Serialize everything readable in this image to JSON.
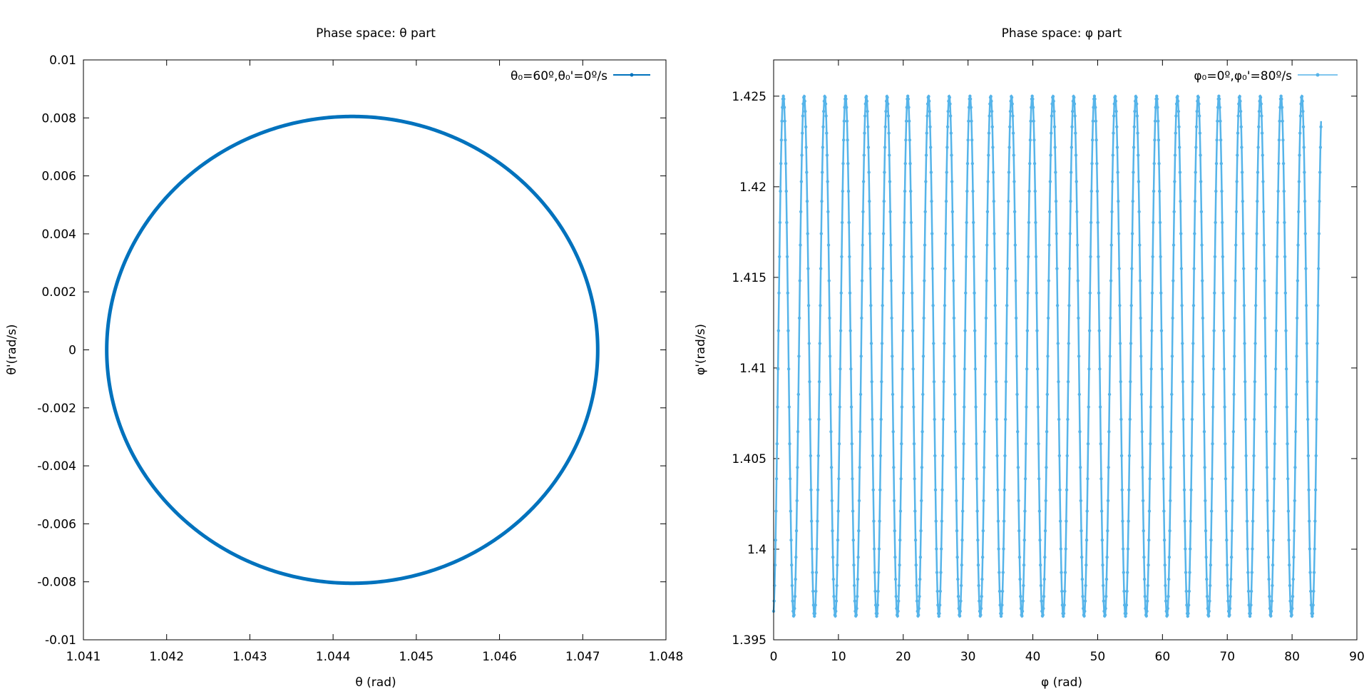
{
  "chart_data": [
    {
      "type": "scatter",
      "title": "Phase space: θ part",
      "xlabel": "θ (rad)",
      "ylabel": "θ'(rad/s)",
      "xlim": [
        1.041,
        1.048
      ],
      "ylim": [
        -0.01,
        0.01
      ],
      "xticks": [
        "1.041",
        "1.042",
        "1.043",
        "1.044",
        "1.045",
        "1.046",
        "1.047",
        "1.048"
      ],
      "yticks": [
        "-0.01",
        "-0.008",
        "-0.006",
        "-0.004",
        "-0.002",
        "0",
        "0.002",
        "0.004",
        "0.006",
        "0.008",
        "0.01"
      ],
      "grid": false,
      "legend_position": "top-right",
      "series": [
        {
          "name": "θ₀=60º,θ₀'=0º/s",
          "color": "#0072bd",
          "shape": "closed orbit (ellipse)",
          "x_range": [
            1.04128,
            1.04718
          ],
          "y_range": [
            -0.00805,
            0.00805
          ],
          "center": [
            1.04423,
            0
          ]
        }
      ]
    },
    {
      "type": "scatter",
      "title": "Phase space: φ part",
      "xlabel": "φ (rad)",
      "ylabel": "φ'(rad/s)",
      "xlim": [
        0,
        90
      ],
      "ylim": [
        1.395,
        1.427
      ],
      "xticks": [
        "0",
        "10",
        "20",
        "30",
        "40",
        "50",
        "60",
        "70",
        "80",
        "90"
      ],
      "yticks": [
        "1.395",
        "1.4",
        "1.405",
        "1.41",
        "1.415",
        "1.42",
        "1.425"
      ],
      "grid": false,
      "legend_position": "top-right",
      "series": [
        {
          "name": "φ₀=0º,φ₀'=80º/s",
          "color": "#56b4e9",
          "shape": "oscillation",
          "x_range": [
            0,
            84.5
          ],
          "y_range": [
            1.3963,
            1.425
          ],
          "period": 3.2,
          "cycles": 26,
          "peaks_x": [
            1.5,
            4.7,
            7.9,
            11.1,
            14.3,
            17.5,
            20.7,
            23.9,
            27.1,
            30.3,
            33.5,
            36.7,
            39.9,
            43.1,
            46.3,
            49.5,
            52.7,
            55.9,
            59.1,
            62.3,
            65.5,
            68.7,
            71.9,
            75.1,
            78.3,
            81.5
          ]
        }
      ]
    }
  ]
}
